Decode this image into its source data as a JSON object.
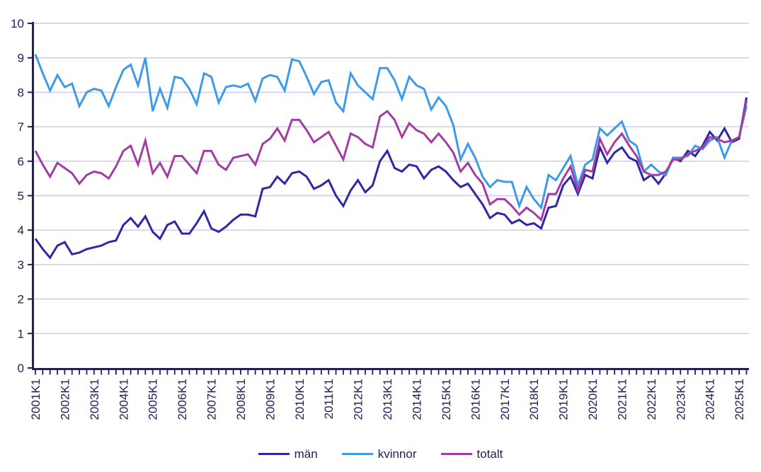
{
  "chart_data": {
    "type": "line",
    "title": "",
    "xlabel": "",
    "ylabel": "",
    "ylim": [
      0,
      10
    ],
    "grid": "horizontal",
    "legend_position": "bottom",
    "y_axis": {
      "tick_labels": [
        "0",
        "1",
        "2",
        "3",
        "4",
        "5",
        "6",
        "7",
        "8",
        "9",
        "10"
      ]
    },
    "x_axis": {
      "total_ticks": 98,
      "label_every": 4,
      "tick_labels_visible": [
        "2001K1",
        "2002K1",
        "2003K1",
        "2004K1",
        "2005K1",
        "2006K1",
        "2007K1",
        "2008K1",
        "2009K1",
        "2010K1",
        "2011K1",
        "2012K1",
        "2013K1",
        "2014K1",
        "2015K1",
        "2016K1",
        "2017K1",
        "2018K1",
        "2019K1",
        "2020K1",
        "2021K1",
        "2022K1",
        "2023K1",
        "2024K1",
        "2025K1"
      ]
    },
    "colors": {
      "axis": "#21205a",
      "labels": "#21205a",
      "grid": "#c9c9e9",
      "background": "#ffffff"
    },
    "series": [
      {
        "name": "män",
        "color": "#2e28a8",
        "values": [
          3.75,
          3.45,
          3.2,
          3.55,
          3.65,
          3.3,
          3.35,
          3.45,
          3.5,
          3.55,
          3.65,
          3.7,
          4.15,
          4.35,
          4.1,
          4.4,
          3.95,
          3.75,
          4.15,
          4.25,
          3.9,
          3.9,
          4.2,
          4.55,
          4.05,
          3.95,
          4.1,
          4.3,
          4.45,
          4.45,
          4.4,
          5.2,
          5.25,
          5.55,
          5.35,
          5.65,
          5.7,
          5.55,
          5.2,
          5.3,
          5.45,
          5.0,
          4.7,
          5.15,
          5.45,
          5.1,
          5.3,
          6.0,
          6.3,
          5.8,
          5.7,
          5.9,
          5.85,
          5.5,
          5.75,
          5.85,
          5.7,
          5.45,
          5.25,
          5.35,
          5.05,
          4.75,
          4.35,
          4.5,
          4.45,
          4.2,
          4.3,
          4.15,
          4.2,
          4.05,
          4.65,
          4.7,
          5.3,
          5.55,
          5.05,
          5.6,
          5.5,
          6.4,
          5.95,
          6.25,
          6.4,
          6.1,
          6.0,
          5.45,
          5.6,
          5.35,
          5.65,
          6.1,
          6.0,
          6.3,
          6.15,
          6.45,
          6.85,
          6.6,
          6.95,
          6.55,
          6.65,
          7.85
        ]
      },
      {
        "name": "kvinnor",
        "color": "#3d9be9",
        "values": [
          9.1,
          8.55,
          8.05,
          8.5,
          8.15,
          8.25,
          7.6,
          8.0,
          8.1,
          8.05,
          7.6,
          8.15,
          8.65,
          8.8,
          8.2,
          9.0,
          7.45,
          8.1,
          7.55,
          8.45,
          8.4,
          8.1,
          7.65,
          8.55,
          8.45,
          7.7,
          8.15,
          8.2,
          8.15,
          8.25,
          7.75,
          8.4,
          8.5,
          8.45,
          8.05,
          8.95,
          8.9,
          8.45,
          7.95,
          8.3,
          8.35,
          7.7,
          7.45,
          8.55,
          8.2,
          8.0,
          7.8,
          8.7,
          8.7,
          8.35,
          7.8,
          8.45,
          8.2,
          8.1,
          7.5,
          7.85,
          7.6,
          7.05,
          6.05,
          6.5,
          6.1,
          5.55,
          5.25,
          5.45,
          5.4,
          5.4,
          4.7,
          5.25,
          4.9,
          4.65,
          5.6,
          5.45,
          5.8,
          6.15,
          5.3,
          5.9,
          6.05,
          6.95,
          6.75,
          6.95,
          7.15,
          6.6,
          6.45,
          5.7,
          5.9,
          5.7,
          5.6,
          6.1,
          6.1,
          6.15,
          6.45,
          6.35,
          6.6,
          6.7,
          6.1,
          6.6,
          6.7,
          7.6
        ]
      },
      {
        "name": "totalt",
        "color": "#a33ca3",
        "values": [
          6.3,
          5.9,
          5.55,
          5.95,
          5.8,
          5.65,
          5.35,
          5.6,
          5.7,
          5.65,
          5.5,
          5.85,
          6.3,
          6.45,
          5.9,
          6.6,
          5.65,
          5.95,
          5.55,
          6.15,
          6.15,
          5.9,
          5.65,
          6.3,
          6.3,
          5.9,
          5.75,
          6.1,
          6.15,
          6.2,
          5.9,
          6.5,
          6.65,
          6.95,
          6.6,
          7.2,
          7.2,
          6.9,
          6.55,
          6.7,
          6.85,
          6.45,
          6.05,
          6.8,
          6.7,
          6.5,
          6.4,
          7.3,
          7.45,
          7.2,
          6.7,
          7.1,
          6.9,
          6.8,
          6.55,
          6.8,
          6.55,
          6.25,
          5.7,
          5.95,
          5.6,
          5.35,
          4.75,
          4.9,
          4.9,
          4.7,
          4.45,
          4.65,
          4.5,
          4.3,
          5.05,
          5.05,
          5.5,
          5.85,
          5.15,
          5.75,
          5.7,
          6.65,
          6.2,
          6.55,
          6.8,
          6.45,
          6.15,
          5.7,
          5.6,
          5.6,
          5.7,
          6.05,
          6.05,
          6.2,
          6.3,
          6.4,
          6.7,
          6.65,
          6.55,
          6.6,
          6.7,
          7.75
        ]
      }
    ]
  }
}
